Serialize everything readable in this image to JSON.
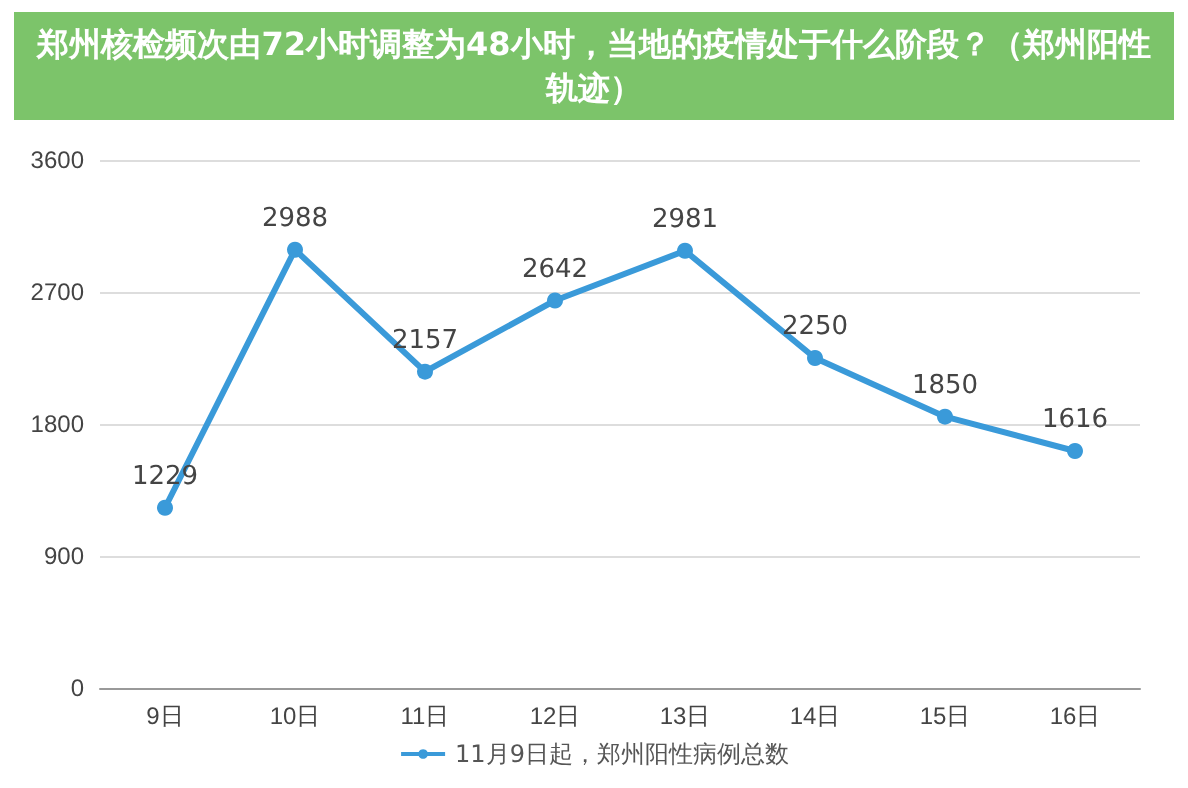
{
  "chart_data": {
    "type": "line",
    "title": "郑州核检频次由72小时调整为48小时，当地的疫情处于什么阶段？（郑州阳性轨迹）",
    "categories": [
      "9日",
      "10日",
      "11日",
      "12日",
      "13日",
      "14日",
      "15日",
      "16日"
    ],
    "series": [
      {
        "name": "11月9日起，郑州阳性病例总数",
        "color": "#3a9ad9",
        "values": [
          1229,
          2988,
          2157,
          2642,
          2981,
          2250,
          1850,
          1616
        ]
      }
    ],
    "ylim": [
      0,
      3600
    ],
    "yticks": [
      0,
      900,
      1800,
      2700,
      3600
    ],
    "grid": "y",
    "legend": "bottom",
    "marker": "circle",
    "line_style": "solid",
    "data_labels": true
  }
}
